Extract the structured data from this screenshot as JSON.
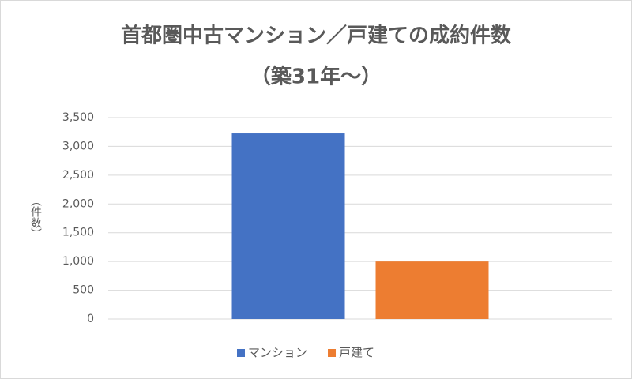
{
  "chart_data": {
    "type": "bar",
    "title": "首都圏中古マンション／戸建ての成約件数",
    "subtitle": "（築31年〜）",
    "y_label": "（件数）",
    "categories": [
      null
    ],
    "series": [
      {
        "name": "マンション",
        "color": "#4472c4",
        "values": [
          3225
        ]
      },
      {
        "name": "戸建て",
        "color": "#ed7d31",
        "values": [
          1000
        ]
      }
    ],
    "ylim": [
      0,
      3500
    ],
    "yticks": [
      0,
      500,
      {
        "value": 1000,
        "label": "1,000"
      },
      {
        "value": 1500,
        "label": "1,500"
      },
      {
        "value": 2000,
        "label": "2,000"
      },
      {
        "value": 2500,
        "label": "2,500"
      },
      {
        "value": 3000,
        "label": "3,000"
      },
      {
        "value": 3500,
        "label": "3,500"
      }
    ],
    "grid": true,
    "legend": "bottom"
  }
}
